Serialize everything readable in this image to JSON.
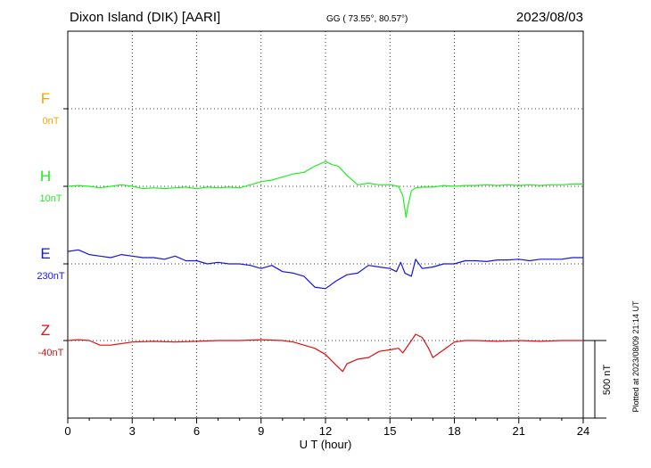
{
  "header": {
    "station": "Dixon Island (DIK)  [AARI]",
    "coords": "GG ( 73.55°,  80.57°)",
    "date": "2023/08/03"
  },
  "footer_note": "Plotted at 2023/08/09 21:14 UT",
  "scale_bar_label": "500 nT",
  "colors": {
    "F": "#f5a800",
    "H": "#22ee22",
    "E": "#1515dd",
    "Z": "#dd1111",
    "axis": "#000000"
  },
  "chart_data": {
    "type": "line",
    "xlabel": "U T (hour)",
    "xlim": [
      0,
      24
    ],
    "xticks": [
      "0",
      "3",
      "6",
      "9",
      "12",
      "15",
      "18",
      "21",
      "24"
    ],
    "scale_nT": 500,
    "series": [
      {
        "name": "F",
        "baseline": "0nT",
        "x": [],
        "values": []
      },
      {
        "name": "H",
        "baseline": "10nT",
        "x": [
          0,
          0.5,
          1,
          1.5,
          2,
          2.5,
          3,
          3.5,
          4,
          4.5,
          5,
          5.5,
          6,
          6.5,
          7,
          7.5,
          8,
          8.5,
          9,
          9.5,
          10,
          10.5,
          11,
          11.5,
          12,
          12.3,
          12.6,
          13,
          13.5,
          14,
          14.5,
          15,
          15.4,
          15.6,
          15.75,
          15.85,
          16,
          16.2,
          16.5,
          17,
          17.5,
          18,
          18.5,
          19,
          19.5,
          20,
          20.5,
          21,
          21.5,
          22,
          22.5,
          23,
          23.5,
          24
        ],
        "values": [
          0,
          5,
          0,
          -10,
          0,
          10,
          0,
          -15,
          -10,
          -15,
          -10,
          -5,
          -15,
          -5,
          -10,
          -5,
          -10,
          10,
          30,
          40,
          60,
          80,
          90,
          130,
          160,
          140,
          130,
          70,
          10,
          20,
          10,
          10,
          0,
          -60,
          -200,
          -120,
          -30,
          -10,
          -5,
          -5,
          5,
          0,
          5,
          5,
          10,
          5,
          10,
          5,
          10,
          5,
          10,
          10,
          15,
          15
        ]
      },
      {
        "name": "E",
        "baseline": "230nT",
        "x": [
          0,
          0.5,
          1,
          1.5,
          2,
          2.5,
          3,
          3.5,
          4,
          4.5,
          5,
          5.5,
          6,
          6.5,
          7,
          7.5,
          8,
          8.5,
          9,
          9.5,
          10,
          10.5,
          11,
          11.5,
          12,
          12.5,
          13,
          13.5,
          14,
          14.5,
          15,
          15.3,
          15.5,
          15.7,
          16,
          16.2,
          16.5,
          17,
          17.5,
          18,
          18.5,
          19,
          19.5,
          20,
          20.5,
          21,
          21.5,
          22,
          22.5,
          23,
          23.5,
          24
        ],
        "values": [
          80,
          90,
          60,
          50,
          40,
          60,
          50,
          40,
          40,
          30,
          50,
          20,
          20,
          0,
          10,
          0,
          0,
          -10,
          -30,
          -10,
          -50,
          -60,
          -80,
          -150,
          -160,
          -110,
          -70,
          -60,
          -10,
          -20,
          -30,
          -50,
          10,
          -60,
          -80,
          30,
          -30,
          -20,
          0,
          0,
          20,
          20,
          15,
          25,
          25,
          30,
          20,
          30,
          30,
          30,
          40,
          40
        ]
      },
      {
        "name": "Z",
        "baseline": "-40nT",
        "x": [
          0,
          0.5,
          1,
          1.5,
          2,
          3,
          4,
          5,
          6,
          7,
          8,
          9,
          10,
          10.5,
          11,
          11.5,
          12,
          12.5,
          12.8,
          13,
          13.5,
          14,
          14.5,
          15,
          15.4,
          15.6,
          15.9,
          16.2,
          16.5,
          16.8,
          17,
          17.3,
          17.6,
          18,
          18.5,
          19,
          20,
          21,
          22,
          23,
          24
        ],
        "values": [
          0,
          5,
          0,
          -30,
          -30,
          -10,
          -5,
          -10,
          -5,
          0,
          0,
          5,
          0,
          -10,
          -30,
          -50,
          -90,
          -160,
          -200,
          -150,
          -120,
          -110,
          -70,
          -60,
          -50,
          -80,
          -20,
          40,
          20,
          -50,
          -110,
          -80,
          -50,
          -10,
          0,
          0,
          -5,
          0,
          -5,
          0,
          0
        ]
      }
    ]
  }
}
